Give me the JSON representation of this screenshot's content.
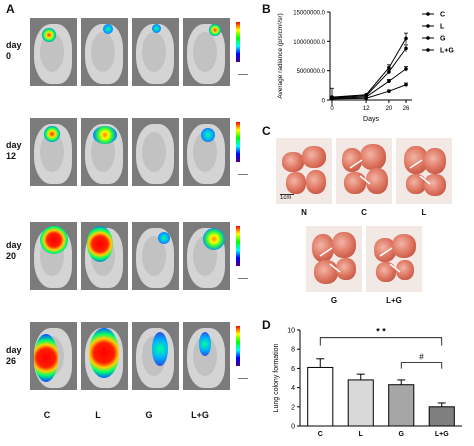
{
  "panels": {
    "a": "A",
    "b": "B",
    "c": "C",
    "d": "D"
  },
  "days": [
    {
      "label": "day",
      "num": "0"
    },
    {
      "label": "day",
      "num": "12"
    },
    {
      "label": "day",
      "num": "20"
    },
    {
      "label": "day",
      "num": "26"
    }
  ],
  "groups": [
    "C",
    "L",
    "G",
    "L+G"
  ],
  "lung_labels": [
    "N",
    "C",
    "L",
    "G",
    "L+G"
  ],
  "scale_bar": "1cm",
  "colors": {
    "C": "#000000",
    "L": "#000000",
    "G": "#000000",
    "L+G": "#000000"
  },
  "chart_data": [
    {
      "type": "line",
      "panel": "B",
      "xlabel": "Days",
      "ylabel": "Average radiance (p/s/cm²/sr)",
      "x": [
        0,
        12,
        20,
        26
      ],
      "xticks": [
        "0",
        "12",
        "20",
        "26"
      ],
      "yticks": [
        "0",
        "5000000.0",
        "10000000.0",
        "15000000.0"
      ],
      "ylim": [
        0,
        15000000
      ],
      "series": [
        {
          "name": "C",
          "values": [
            500000,
            900000,
            5500000,
            10500000
          ],
          "err": [
            1500000,
            0,
            500000,
            900000
          ]
        },
        {
          "name": "L",
          "values": [
            400000,
            700000,
            4800000,
            8800000
          ],
          "err": [
            0,
            0,
            400000,
            600000
          ]
        },
        {
          "name": "G",
          "values": [
            300000,
            500000,
            3200000,
            5300000
          ],
          "err": [
            0,
            0,
            300000,
            400000
          ]
        },
        {
          "name": "L+G",
          "values": [
            200000,
            300000,
            1500000,
            2600000
          ],
          "err": [
            0,
            0,
            200000,
            300000
          ]
        }
      ],
      "legend": "top-right"
    },
    {
      "type": "bar",
      "panel": "D",
      "ylabel": "Lung colony formation",
      "categories": [
        "C",
        "L",
        "G",
        "L+G"
      ],
      "values": [
        6.1,
        4.8,
        4.3,
        2.0
      ],
      "err": [
        0.9,
        0.6,
        0.5,
        0.4
      ],
      "fills": [
        "#ffffff",
        "#d9d9d9",
        "#a6a6a6",
        "#7f7f7f"
      ],
      "ylim": [
        0,
        10
      ],
      "yticks": [
        "0",
        "2",
        "4",
        "6",
        "8",
        "10"
      ],
      "annotations": {
        "star": "* *",
        "hash": "#"
      }
    }
  ]
}
